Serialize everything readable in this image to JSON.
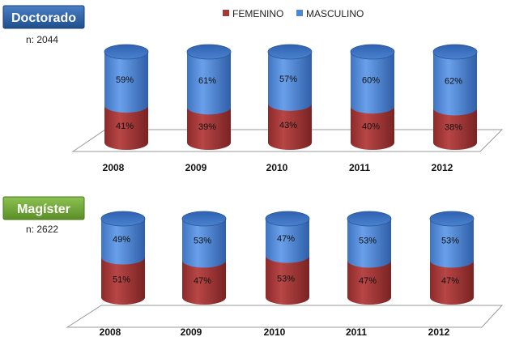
{
  "legend": [
    {
      "label": "FEMENINO",
      "color": "#a33a3a"
    },
    {
      "label": "MASCULINO",
      "color": "#4f87d6"
    }
  ],
  "panels": [
    {
      "title": "Doctorado",
      "title_color": "#2b5f9e",
      "n_label": "n: 2044"
    },
    {
      "title": "Magíster",
      "title_color": "#6fa336",
      "n_label": "n: 2622"
    }
  ],
  "chart_data": [
    {
      "type": "bar",
      "title": "Doctorado",
      "stacked": true,
      "categories": [
        "2008",
        "2009",
        "2010",
        "2011",
        "2012"
      ],
      "series": [
        {
          "name": "FEMENINO",
          "values": [
            41,
            39,
            43,
            40,
            38
          ],
          "labels": [
            "41%",
            "39%",
            "43%",
            "40%",
            "38%"
          ],
          "color": "#a33a3a"
        },
        {
          "name": "MASCULINO",
          "values": [
            59,
            61,
            57,
            60,
            62
          ],
          "labels": [
            "59%",
            "61%",
            "57%",
            "60%",
            "62%"
          ],
          "color": "#4f87d6"
        }
      ],
      "ylim": [
        0,
        100
      ]
    },
    {
      "type": "bar",
      "title": "Magíster",
      "stacked": true,
      "categories": [
        "2008",
        "2009",
        "2010",
        "2011",
        "2012"
      ],
      "series": [
        {
          "name": "FEMENINO",
          "values": [
            51,
            47,
            53,
            47,
            47
          ],
          "labels": [
            "51%",
            "47%",
            "53%",
            "47%",
            "47%"
          ],
          "color": "#a33a3a"
        },
        {
          "name": "MASCULINO",
          "values": [
            49,
            53,
            47,
            53,
            53
          ],
          "labels": [
            "49%",
            "53%",
            "47%",
            "53%",
            "53%"
          ],
          "color": "#4f87d6"
        }
      ],
      "ylim": [
        0,
        100
      ]
    }
  ]
}
